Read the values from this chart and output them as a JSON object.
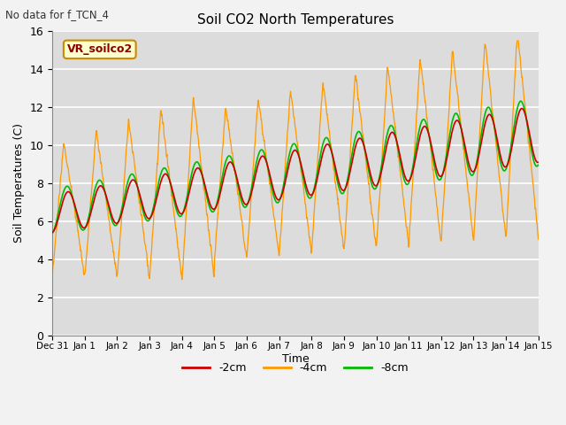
{
  "title": "Soil CO2 North Temperatures",
  "no_data_label": "No data for f_TCN_4",
  "vr_label": "VR_soilco2",
  "ylabel": "Soil Temperatures (C)",
  "xlabel": "Time",
  "ylim": [
    0,
    16
  ],
  "tick_labels": [
    "Dec 31",
    "Jan 1",
    "Jan 2",
    "Jan 3",
    "Jan 4",
    "Jan 5",
    "Jan 6",
    "Jan 7",
    "Jan 8",
    "Jan 9",
    "Jan 10",
    "Jan 11",
    "Jan 12",
    "Jan 13",
    "Jan 14",
    "Jan 15"
  ],
  "legend_entries": [
    "-2cm",
    "-4cm",
    "-8cm"
  ],
  "colors": {
    "line_2cm": "#cc0000",
    "line_4cm": "#ff9900",
    "line_8cm": "#00bb00",
    "fig_bg": "#f2f2f2",
    "plot_bg": "#dcdcdc",
    "vr_box_bg": "#ffffcc",
    "vr_box_edge": "#cc8800"
  },
  "grid_color": "#ffffff",
  "yticks": [
    0,
    2,
    4,
    6,
    8,
    10,
    12,
    14,
    16
  ]
}
